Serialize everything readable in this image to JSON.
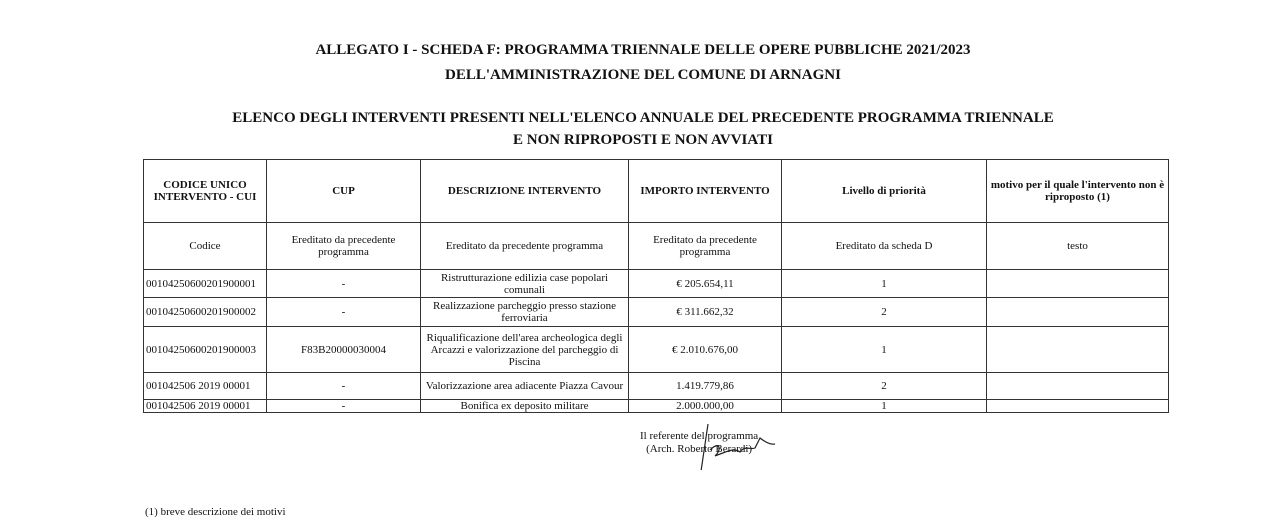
{
  "titles": {
    "line1": "ALLEGATO I - SCHEDA F: PROGRAMMA TRIENNALE DELLE OPERE PUBBLICHE 2021/2023",
    "line2": "DELL'AMMINISTRAZIONE DEL COMUNE DI ARNAGNI",
    "line3": "ELENCO DEGLI INTERVENTI PRESENTI NELL'ELENCO ANNUALE DEL PRECEDENTE PROGRAMMA TRIENNALE",
    "line4": "E NON RIPROPOSTI E NON AVVIATI"
  },
  "table": {
    "headers": [
      "CODICE UNICO INTERVENTO - CUI",
      "CUP",
      "DESCRIZIONE INTERVENTO",
      "IMPORTO INTERVENTO",
      "Livello di priorità",
      "motivo per il quale l'intervento non è riproposto (1)"
    ],
    "subheaders": [
      "Codice",
      "Ereditato da precedente programma",
      "Ereditato da precedente programma",
      "Ereditato da precedente programma",
      "Ereditato da scheda D",
      "testo"
    ],
    "rows": [
      [
        "00104250600201900001",
        "-",
        "Ristrutturazione edilizia case popolari comunali",
        "€ 205.654,11",
        "1",
        ""
      ],
      [
        "00104250600201900002",
        "-",
        "Realizzazione parcheggio presso stazione ferroviaria",
        "€ 311.662,32",
        "2",
        ""
      ],
      [
        "00104250600201900003",
        "F83B20000030004",
        "Riqualificazione dell'area archeologica degli Arcazzi e valorizzazione del parcheggio di Piscina",
        "€ 2.010.676,00",
        "1",
        ""
      ],
      [
        "001042506 2019 00001",
        "-",
        "Valorizzazione area adiacente Piazza Cavour",
        "1.419.779,86",
        "2",
        ""
      ],
      [
        "001042506 2019 00001",
        "-",
        "Bonifica ex deposito militare",
        "2.000.000,00",
        "1",
        ""
      ]
    ]
  },
  "signature": {
    "line1": "Il referente del programma",
    "line2": "(Arch. Roberto Berardi)"
  },
  "footnote": "(1) breve descrizione dei motivi"
}
